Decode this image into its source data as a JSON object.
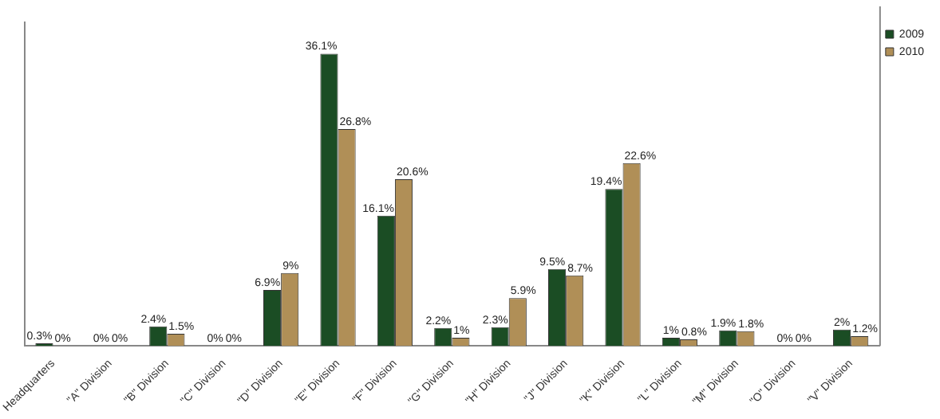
{
  "chart_data": {
    "type": "bar",
    "categories": [
      "Headquarters",
      "\"A\" Division",
      "\"B\" Division",
      "\"C\" Division",
      "\"D\" Division",
      "\"E\" Division",
      "\"F\" Division",
      "\"G\" Division",
      "\"H\" Division",
      "\"J\" Division",
      "\"K\" Division",
      "\"L\" Division",
      "\"M\" Division",
      "\"O\" Division",
      "\"V\" Division"
    ],
    "series": [
      {
        "name": "2009",
        "color": "#1b4d24",
        "values": [
          0.3,
          0,
          2.4,
          0,
          6.9,
          36.1,
          16.1,
          2.2,
          2.3,
          9.5,
          19.4,
          1,
          1.9,
          0,
          2
        ],
        "value_labels": [
          "0.3%",
          "0%",
          "2.4%",
          "0%",
          "6.9%",
          "36.1%",
          "16.1%",
          "2.2%",
          "2.3%",
          "9.5%",
          "19.4%",
          "1%",
          "1.9%",
          "0%",
          "2%"
        ]
      },
      {
        "name": "2010",
        "color": "#b08f57",
        "values": [
          0,
          0,
          1.5,
          0,
          9,
          26.8,
          20.6,
          1,
          5.9,
          8.7,
          22.6,
          0.8,
          1.8,
          0,
          1.2
        ],
        "value_labels": [
          "0%",
          "0%",
          "1.5%",
          "0%",
          "9%",
          "26.8%",
          "20.6%",
          "1%",
          "5.9%",
          "8.7%",
          "22.6%",
          "0.8%",
          "1.8%",
          "0%",
          "1.2%"
        ]
      }
    ],
    "legend": "right",
    "grid": false
  }
}
